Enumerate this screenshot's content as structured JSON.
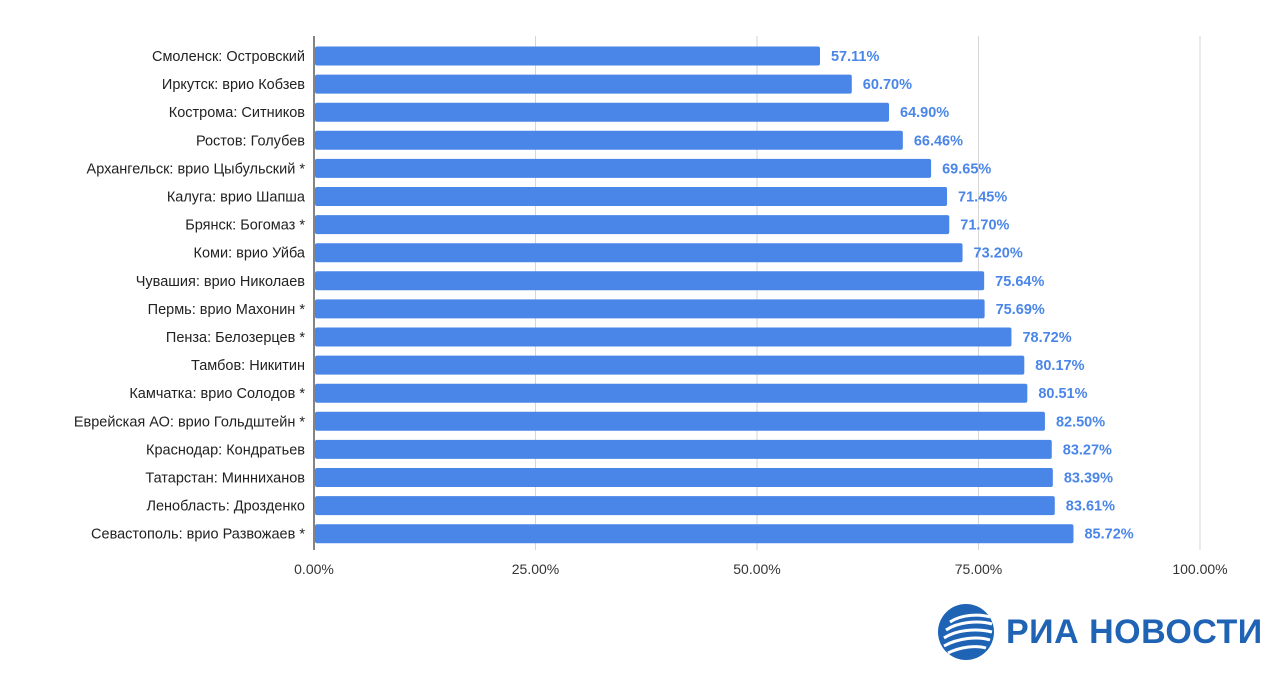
{
  "chart_data": {
    "type": "bar",
    "orientation": "horizontal",
    "categories": [
      "Смоленск: Островский",
      "Иркутск: врио Кобзев",
      "Кострома: Ситников",
      "Ростов: Голубев",
      "Архангельск: врио Цыбульский *",
      "Калуга: врио Шапша",
      "Брянск: Богомаз *",
      "Коми: врио Уйба",
      "Чувашия: врио Николаев",
      "Пермь: врио Махонин *",
      "Пенза: Белозерцев *",
      "Тамбов: Никитин",
      "Камчатка: врио Солодов *",
      "Еврейская АО: врио Гольдштейн *",
      "Краснодар: Кондратьев",
      "Татарстан: Минниханов",
      "Ленобласть: Дрозденко",
      "Севастополь: врио Развожаев *"
    ],
    "values": [
      57.11,
      60.7,
      64.9,
      66.46,
      69.65,
      71.45,
      71.7,
      73.2,
      75.64,
      75.69,
      78.72,
      80.17,
      80.51,
      82.5,
      83.27,
      83.39,
      83.61,
      85.72
    ],
    "value_labels": [
      "57.11%",
      "60.70%",
      "64.90%",
      "66.46%",
      "69.65%",
      "71.45%",
      "71.70%",
      "73.20%",
      "75.64%",
      "75.69%",
      "78.72%",
      "80.17%",
      "80.51%",
      "82.50%",
      "83.27%",
      "83.39%",
      "83.61%",
      "85.72%"
    ],
    "x_ticks": [
      0,
      25,
      50,
      75,
      100
    ],
    "x_tick_labels": [
      "0.00%",
      "25.00%",
      "50.00%",
      "75.00%",
      "100.00%"
    ],
    "xlim": [
      0,
      100
    ],
    "grid": true,
    "bar_color": "#4a86e8",
    "title": "",
    "xlabel": "",
    "ylabel": ""
  },
  "logo": {
    "text": "РИА НОВОСТИ",
    "color": "#1f63b5"
  }
}
